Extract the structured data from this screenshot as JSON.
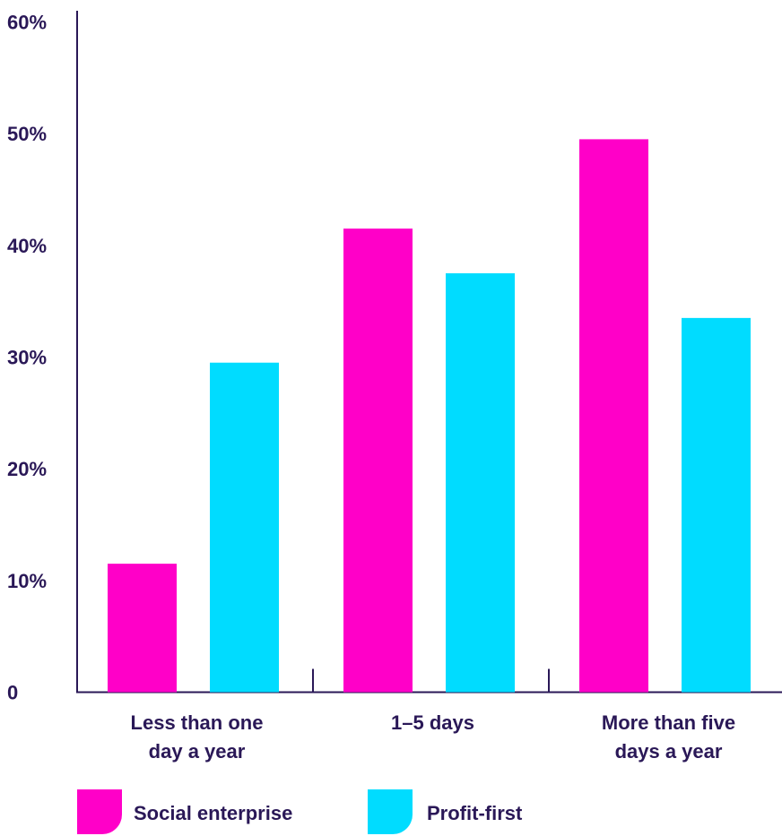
{
  "chart_data": {
    "type": "bar",
    "categories": [
      [
        "Less than one",
        "day a year"
      ],
      [
        "1–5 days"
      ],
      [
        "More than five",
        "days a year"
      ]
    ],
    "series": [
      {
        "name": "Social enterprise",
        "color": "#ff00c8",
        "values": [
          11.5,
          41.5,
          49.5
        ]
      },
      {
        "name": "Profit-first",
        "color": "#00dcff",
        "values": [
          29.5,
          37.5,
          33.5
        ]
      }
    ],
    "ylim": [
      0,
      60
    ],
    "yticks": [
      {
        "value": 0,
        "label": "0"
      },
      {
        "value": 10,
        "label": "10%"
      },
      {
        "value": 20,
        "label": "20%"
      },
      {
        "value": 30,
        "label": "30%"
      },
      {
        "value": 40,
        "label": "40%"
      },
      {
        "value": 50,
        "label": "50%"
      },
      {
        "value": 60,
        "label": "60%"
      }
    ],
    "grid": false,
    "legend": "bottom-left",
    "title": "",
    "xlabel": "",
    "ylabel": ""
  }
}
